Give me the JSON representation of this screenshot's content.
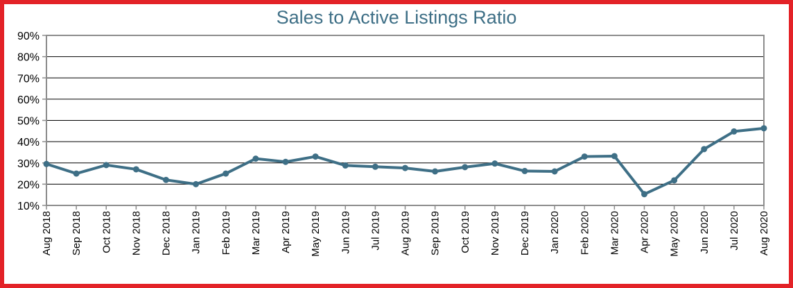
{
  "chart_data": {
    "type": "line",
    "title": "Sales to Active Listings Ratio",
    "xlabel": "",
    "ylabel": "",
    "categories": [
      "Aug 2018",
      "Sep 2018",
      "Oct 2018",
      "Nov 2018",
      "Dec 2018",
      "Jan 2019",
      "Feb 2019",
      "Mar 2019",
      "Apr 2019",
      "May 2019",
      "Jun 2019",
      "Jul 2019",
      "Aug 2019",
      "Sep 2019",
      "Oct 2019",
      "Nov 2019",
      "Dec 2019",
      "Jan 2020",
      "Feb 2020",
      "Mar 2020",
      "Apr 2020",
      "May 2020",
      "Jun 2020",
      "Jul 2020",
      "Aug 2020"
    ],
    "series": [
      {
        "values": [
          29.5,
          25,
          29,
          27,
          22,
          20,
          25,
          32,
          30.5,
          33,
          28.8,
          28.2,
          27.6,
          26,
          28,
          29.7,
          26.2,
          26,
          33,
          33.2,
          15.3,
          21.8,
          36.5,
          44.8,
          46.3
        ]
      }
    ],
    "ylim": [
      10,
      90
    ],
    "yticks": [
      "10%",
      "20%",
      "30%",
      "40%",
      "50%",
      "60%",
      "70%",
      "80%",
      "90%"
    ],
    "grid": true,
    "legend": "none",
    "colors": {
      "line": "#3e6f86",
      "frame": "#e32227",
      "title": "#3e6f86"
    }
  }
}
